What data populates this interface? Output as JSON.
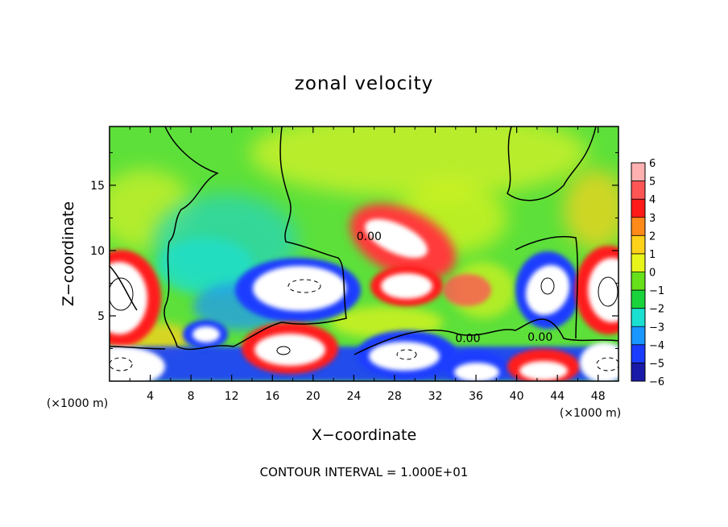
{
  "chart_data": {
    "type": "heatmap",
    "title": "zonal velocity",
    "xlabel": "X−coordinate",
    "ylabel": "Z−coordinate",
    "x_unit_left": "(×1000 m)",
    "x_unit_right": "(×1000 m)",
    "xlim": [
      0,
      50
    ],
    "ylim": [
      0,
      19.5
    ],
    "x_ticks": [
      "4",
      "8",
      "12",
      "16",
      "20",
      "24",
      "28",
      "32",
      "36",
      "40",
      "44",
      "48"
    ],
    "x_tick_values": [
      4,
      8,
      12,
      16,
      20,
      24,
      28,
      32,
      36,
      40,
      44,
      48
    ],
    "y_ticks": [
      "5",
      "10",
      "15"
    ],
    "y_tick_values": [
      5,
      10,
      15
    ],
    "colorbar": {
      "labels": [
        "6",
        "5",
        "4",
        "3",
        "2",
        "1",
        "0",
        "−1",
        "−2",
        "−3",
        "−4",
        "−5",
        "−6"
      ],
      "values": [
        6,
        5,
        4,
        3,
        2,
        1,
        0,
        -1,
        -2,
        -3,
        -4,
        -5,
        -6
      ],
      "colors": [
        "#ffb0b0",
        "#ff5555",
        "#ff1a1a",
        "#ff8a1a",
        "#ffd21a",
        "#e8f51a",
        "#66e01a",
        "#1ad23c",
        "#1ae0d2",
        "#1a96ff",
        "#1a3cff",
        "#1a1aa8",
        "#6a1aa8"
      ],
      "over_color": "#ffffff"
    },
    "contour_labels": [
      {
        "text": "0.00",
        "x": 25.5,
        "y": 10.8
      },
      {
        "text": "0.00",
        "x": 35.2,
        "y": 3.0
      },
      {
        "text": "0.00",
        "x": 42.3,
        "y": 3.1
      }
    ],
    "annotations": [
      "CONTOUR INTERVAL = 1.000E+01"
    ],
    "grid": false
  }
}
